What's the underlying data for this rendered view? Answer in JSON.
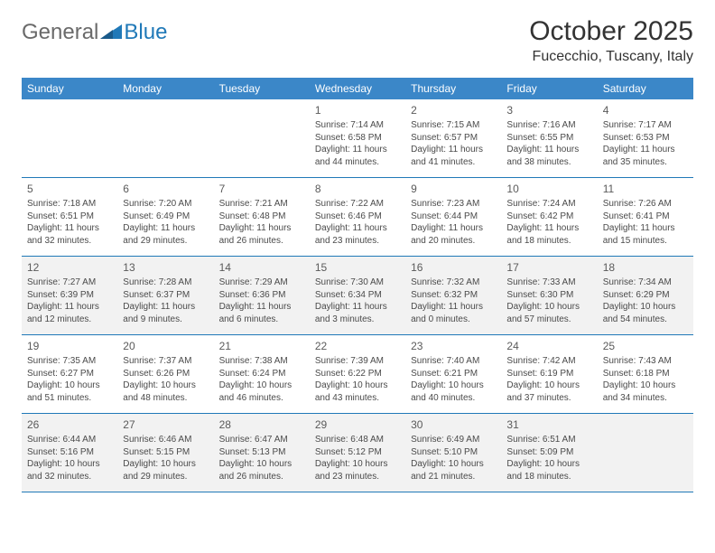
{
  "header": {
    "logo_general": "General",
    "logo_blue": "Blue",
    "month_title": "October 2025",
    "location": "Fucecchio, Tuscany, Italy"
  },
  "colors": {
    "header_bg": "#3b87c8",
    "header_text": "#ffffff",
    "border": "#2079b8",
    "shade": "#f2f2f2",
    "body_text": "#4a4a4a",
    "title_text": "#333333",
    "logo_gray": "#6a6a6a",
    "logo_blue": "#2079b8"
  },
  "weekdays": [
    "Sunday",
    "Monday",
    "Tuesday",
    "Wednesday",
    "Thursday",
    "Friday",
    "Saturday"
  ],
  "weeks": [
    {
      "shaded": false,
      "days": [
        {
          "num": "",
          "lines": []
        },
        {
          "num": "",
          "lines": []
        },
        {
          "num": "",
          "lines": []
        },
        {
          "num": "1",
          "lines": [
            "Sunrise: 7:14 AM",
            "Sunset: 6:58 PM",
            "Daylight: 11 hours and 44 minutes."
          ]
        },
        {
          "num": "2",
          "lines": [
            "Sunrise: 7:15 AM",
            "Sunset: 6:57 PM",
            "Daylight: 11 hours and 41 minutes."
          ]
        },
        {
          "num": "3",
          "lines": [
            "Sunrise: 7:16 AM",
            "Sunset: 6:55 PM",
            "Daylight: 11 hours and 38 minutes."
          ]
        },
        {
          "num": "4",
          "lines": [
            "Sunrise: 7:17 AM",
            "Sunset: 6:53 PM",
            "Daylight: 11 hours and 35 minutes."
          ]
        }
      ]
    },
    {
      "shaded": false,
      "days": [
        {
          "num": "5",
          "lines": [
            "Sunrise: 7:18 AM",
            "Sunset: 6:51 PM",
            "Daylight: 11 hours and 32 minutes."
          ]
        },
        {
          "num": "6",
          "lines": [
            "Sunrise: 7:20 AM",
            "Sunset: 6:49 PM",
            "Daylight: 11 hours and 29 minutes."
          ]
        },
        {
          "num": "7",
          "lines": [
            "Sunrise: 7:21 AM",
            "Sunset: 6:48 PM",
            "Daylight: 11 hours and 26 minutes."
          ]
        },
        {
          "num": "8",
          "lines": [
            "Sunrise: 7:22 AM",
            "Sunset: 6:46 PM",
            "Daylight: 11 hours and 23 minutes."
          ]
        },
        {
          "num": "9",
          "lines": [
            "Sunrise: 7:23 AM",
            "Sunset: 6:44 PM",
            "Daylight: 11 hours and 20 minutes."
          ]
        },
        {
          "num": "10",
          "lines": [
            "Sunrise: 7:24 AM",
            "Sunset: 6:42 PM",
            "Daylight: 11 hours and 18 minutes."
          ]
        },
        {
          "num": "11",
          "lines": [
            "Sunrise: 7:26 AM",
            "Sunset: 6:41 PM",
            "Daylight: 11 hours and 15 minutes."
          ]
        }
      ]
    },
    {
      "shaded": true,
      "days": [
        {
          "num": "12",
          "lines": [
            "Sunrise: 7:27 AM",
            "Sunset: 6:39 PM",
            "Daylight: 11 hours and 12 minutes."
          ]
        },
        {
          "num": "13",
          "lines": [
            "Sunrise: 7:28 AM",
            "Sunset: 6:37 PM",
            "Daylight: 11 hours and 9 minutes."
          ]
        },
        {
          "num": "14",
          "lines": [
            "Sunrise: 7:29 AM",
            "Sunset: 6:36 PM",
            "Daylight: 11 hours and 6 minutes."
          ]
        },
        {
          "num": "15",
          "lines": [
            "Sunrise: 7:30 AM",
            "Sunset: 6:34 PM",
            "Daylight: 11 hours and 3 minutes."
          ]
        },
        {
          "num": "16",
          "lines": [
            "Sunrise: 7:32 AM",
            "Sunset: 6:32 PM",
            "Daylight: 11 hours and 0 minutes."
          ]
        },
        {
          "num": "17",
          "lines": [
            "Sunrise: 7:33 AM",
            "Sunset: 6:30 PM",
            "Daylight: 10 hours and 57 minutes."
          ]
        },
        {
          "num": "18",
          "lines": [
            "Sunrise: 7:34 AM",
            "Sunset: 6:29 PM",
            "Daylight: 10 hours and 54 minutes."
          ]
        }
      ]
    },
    {
      "shaded": false,
      "days": [
        {
          "num": "19",
          "lines": [
            "Sunrise: 7:35 AM",
            "Sunset: 6:27 PM",
            "Daylight: 10 hours and 51 minutes."
          ]
        },
        {
          "num": "20",
          "lines": [
            "Sunrise: 7:37 AM",
            "Sunset: 6:26 PM",
            "Daylight: 10 hours and 48 minutes."
          ]
        },
        {
          "num": "21",
          "lines": [
            "Sunrise: 7:38 AM",
            "Sunset: 6:24 PM",
            "Daylight: 10 hours and 46 minutes."
          ]
        },
        {
          "num": "22",
          "lines": [
            "Sunrise: 7:39 AM",
            "Sunset: 6:22 PM",
            "Daylight: 10 hours and 43 minutes."
          ]
        },
        {
          "num": "23",
          "lines": [
            "Sunrise: 7:40 AM",
            "Sunset: 6:21 PM",
            "Daylight: 10 hours and 40 minutes."
          ]
        },
        {
          "num": "24",
          "lines": [
            "Sunrise: 7:42 AM",
            "Sunset: 6:19 PM",
            "Daylight: 10 hours and 37 minutes."
          ]
        },
        {
          "num": "25",
          "lines": [
            "Sunrise: 7:43 AM",
            "Sunset: 6:18 PM",
            "Daylight: 10 hours and 34 minutes."
          ]
        }
      ]
    },
    {
      "shaded": true,
      "days": [
        {
          "num": "26",
          "lines": [
            "Sunrise: 6:44 AM",
            "Sunset: 5:16 PM",
            "Daylight: 10 hours and 32 minutes."
          ]
        },
        {
          "num": "27",
          "lines": [
            "Sunrise: 6:46 AM",
            "Sunset: 5:15 PM",
            "Daylight: 10 hours and 29 minutes."
          ]
        },
        {
          "num": "28",
          "lines": [
            "Sunrise: 6:47 AM",
            "Sunset: 5:13 PM",
            "Daylight: 10 hours and 26 minutes."
          ]
        },
        {
          "num": "29",
          "lines": [
            "Sunrise: 6:48 AM",
            "Sunset: 5:12 PM",
            "Daylight: 10 hours and 23 minutes."
          ]
        },
        {
          "num": "30",
          "lines": [
            "Sunrise: 6:49 AM",
            "Sunset: 5:10 PM",
            "Daylight: 10 hours and 21 minutes."
          ]
        },
        {
          "num": "31",
          "lines": [
            "Sunrise: 6:51 AM",
            "Sunset: 5:09 PM",
            "Daylight: 10 hours and 18 minutes."
          ]
        },
        {
          "num": "",
          "lines": []
        }
      ]
    }
  ]
}
